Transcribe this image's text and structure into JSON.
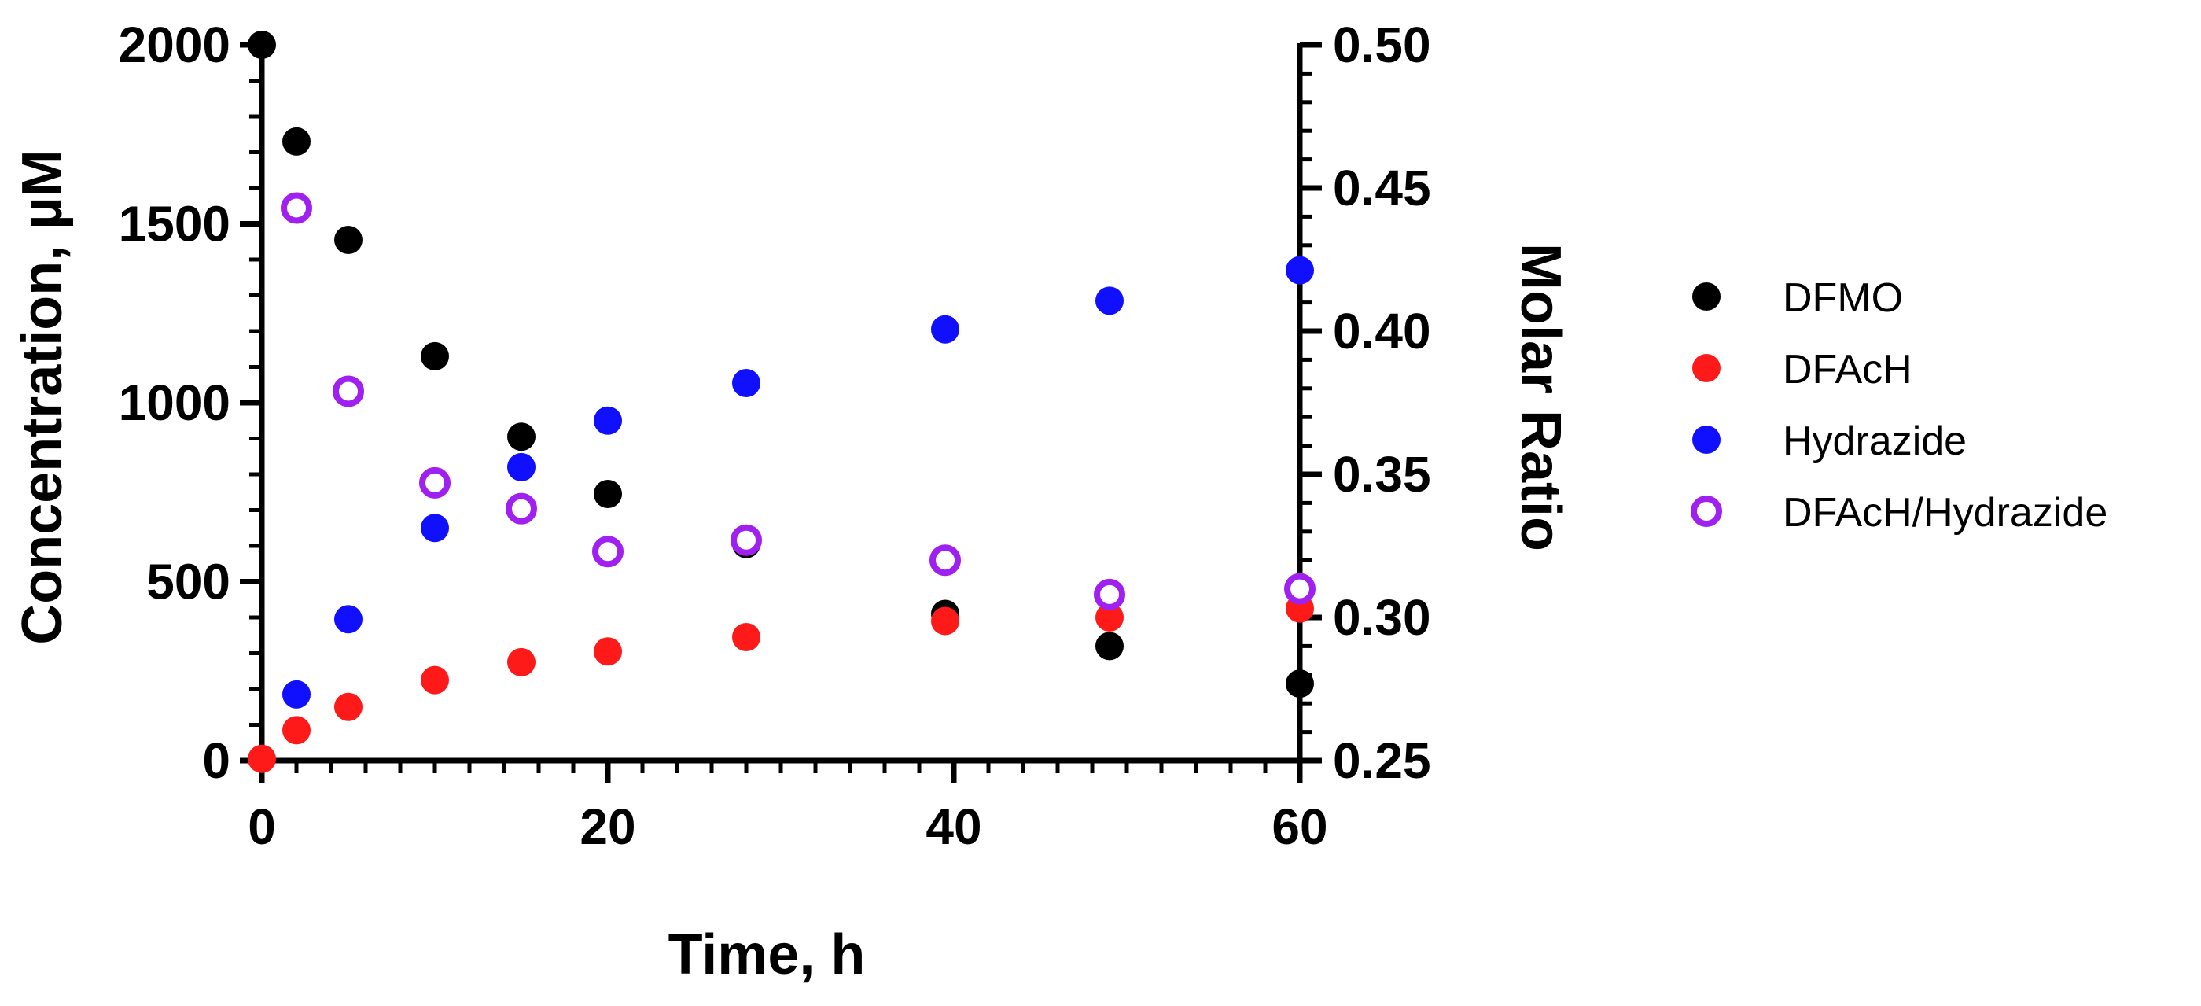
{
  "chart_data": {
    "type": "scatter",
    "xlabel": "Time, h",
    "ylabel": "Concentration, µM",
    "y2label": "Molar Ratio",
    "xlim": [
      0,
      60
    ],
    "ylim": [
      0,
      2000
    ],
    "y2lim": [
      0.25,
      0.5
    ],
    "xticks": [
      "0",
      "20",
      "40",
      "60"
    ],
    "yticks": [
      "0",
      "500",
      "1000",
      "1500",
      "2000"
    ],
    "y2ticks": [
      "0.25",
      "0.30",
      "0.35",
      "0.40",
      "0.45",
      "0.50"
    ],
    "grid": false,
    "legend_position": "right",
    "series": [
      {
        "name": "DFMO",
        "axis": "left",
        "marker": "filled-circle",
        "color": "#000000",
        "x": [
          0,
          2,
          5,
          10,
          15,
          20,
          28,
          39.5,
          49,
          60
        ],
        "y": [
          2000,
          1730,
          1455,
          1130,
          905,
          745,
          605,
          410,
          320,
          215
        ]
      },
      {
        "name": "DFAcH",
        "axis": "left",
        "marker": "filled-circle",
        "color": "#ff1a1a",
        "x": [
          0,
          2,
          5,
          10,
          15,
          20,
          28,
          39.5,
          49,
          60
        ],
        "y": [
          5,
          85,
          150,
          225,
          275,
          305,
          345,
          390,
          400,
          425
        ]
      },
      {
        "name": "Hydrazide",
        "axis": "left",
        "marker": "filled-circle",
        "color": "#1010ff",
        "x": [
          2,
          5,
          10,
          15,
          20,
          28,
          39.5,
          49,
          60
        ],
        "y": [
          185,
          395,
          650,
          820,
          950,
          1055,
          1205,
          1285,
          1370
        ]
      },
      {
        "name": "DFAcH/Hydrazide",
        "axis": "right",
        "marker": "open-circle",
        "color": "#a020f0",
        "x": [
          2,
          5,
          10,
          15,
          20,
          28,
          39.5,
          49,
          60
        ],
        "y": [
          0.443,
          0.379,
          0.347,
          0.338,
          0.323,
          0.327,
          0.32,
          0.308,
          0.31
        ]
      }
    ]
  }
}
